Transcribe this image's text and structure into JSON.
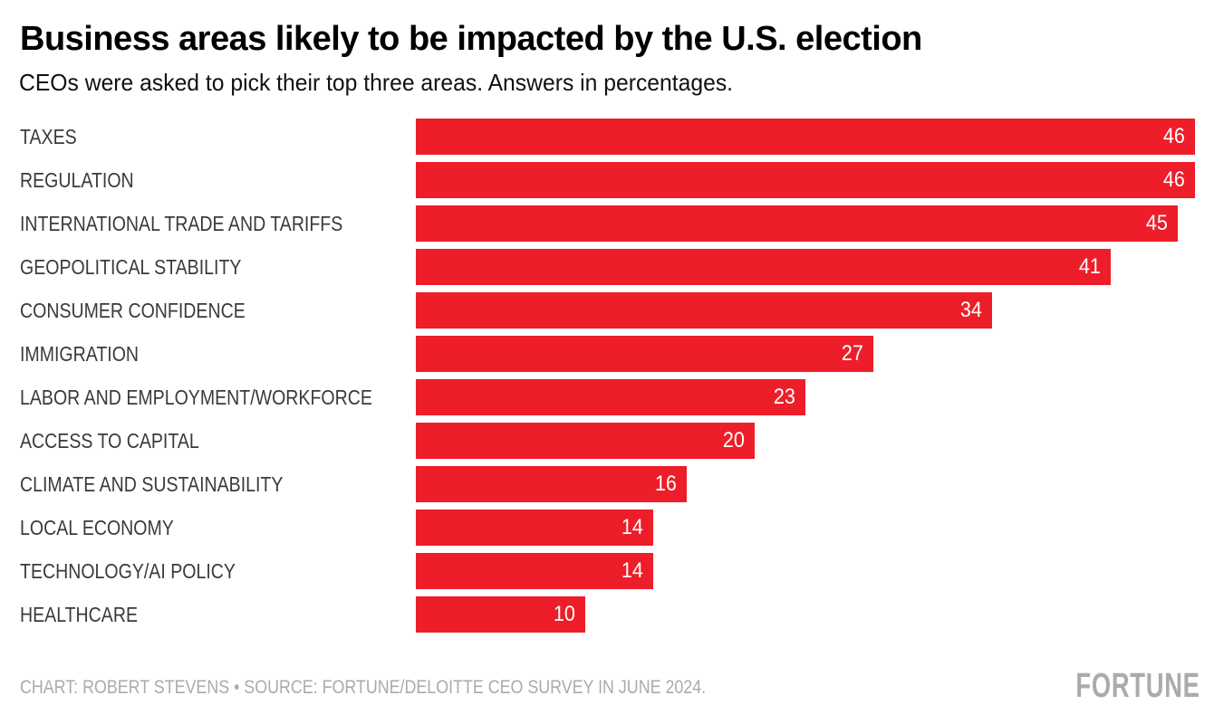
{
  "header": {
    "title": "Business areas likely to be impacted by the U.S. election",
    "subtitle": "CEOs were asked to pick their top three areas. Answers in percentages."
  },
  "chart_data": {
    "type": "bar",
    "orientation": "horizontal",
    "title": "Business areas likely to be impacted by the U.S. election",
    "subtitle": "CEOs were asked to pick their top three areas. Answers in percentages.",
    "categories": [
      "TAXES",
      "REGULATION",
      "INTERNATIONAL TRADE AND TARIFFS",
      "GEOPOLITICAL STABILITY",
      "CONSUMER CONFIDENCE",
      "IMMIGRATION",
      "LABOR AND EMPLOYMENT/WORKFORCE",
      "ACCESS TO CAPITAL",
      "CLIMATE AND SUSTAINABILITY",
      "LOCAL ECONOMY",
      "TECHNOLOGY/AI POLICY",
      "HEALTHCARE"
    ],
    "values": [
      46,
      46,
      45,
      41,
      34,
      27,
      23,
      20,
      16,
      14,
      14,
      10
    ],
    "value_labels_inside_bars": true,
    "xlim": [
      0,
      46
    ],
    "grid": false,
    "legend": "none",
    "bar_color": "#ED1E29",
    "value_label_color": "#FFFFFF",
    "category_label_color": "#3A3A3A"
  },
  "footer": {
    "credit": "CHART: ROBERT STEVENS • SOURCE: FORTUNE/DELOITTE CEO SURVEY IN JUNE 2024.",
    "logo": "FORTUNE"
  }
}
